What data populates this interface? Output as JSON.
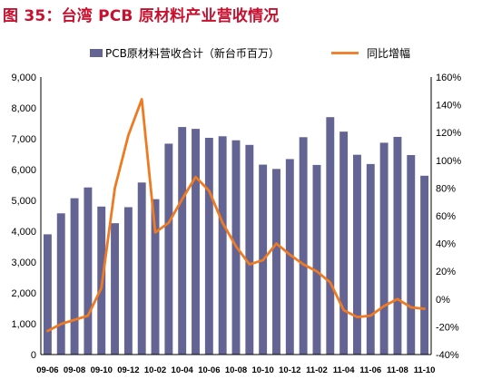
{
  "figure_title": "图 35：台湾 PCB 原材料产业营收情况",
  "colors": {
    "bar": "#636394",
    "line": "#ee7a22",
    "title": "#c8102e"
  },
  "chart_data": {
    "type": "bar+line",
    "categories": [
      "09-06",
      "09-07",
      "09-08",
      "09-09",
      "09-10",
      "09-11",
      "09-12",
      "10-01",
      "10-02",
      "10-03",
      "10-04",
      "10-05",
      "10-06",
      "10-07",
      "10-08",
      "10-09",
      "10-10",
      "10-11",
      "10-12",
      "11-01",
      "11-02",
      "11-03",
      "11-04",
      "11-05",
      "11-06",
      "11-07",
      "11-08",
      "11-09",
      "11-10"
    ],
    "x_tick_labels": [
      "09-06",
      "09-08",
      "09-10",
      "09-12",
      "10-02",
      "10-04",
      "10-06",
      "10-08",
      "10-10",
      "10-12",
      "11-02",
      "11-04",
      "11-06",
      "11-08",
      "11-10"
    ],
    "series": [
      {
        "name": "PCB原材料营收合计（新台币百万）",
        "type": "bar",
        "axis": "left",
        "values": [
          3900,
          4580,
          5070,
          5420,
          4800,
          4260,
          4780,
          5580,
          5040,
          6840,
          7380,
          7320,
          7030,
          7080,
          6950,
          6800,
          6160,
          6020,
          6340,
          7050,
          6150,
          7700,
          7230,
          6480,
          6180,
          6870,
          7060,
          6470,
          5800
        ]
      },
      {
        "name": "同比增幅",
        "type": "line",
        "axis": "right",
        "values": [
          -23,
          -18,
          -15,
          -12,
          8,
          80,
          118,
          144,
          48,
          55,
          72,
          88,
          78,
          55,
          38,
          25,
          28,
          40,
          32,
          25,
          20,
          12,
          -8,
          -13,
          -12,
          -5,
          0,
          -6,
          -7
        ]
      }
    ],
    "y_left": {
      "min": 0,
      "max": 9000,
      "step": 1000,
      "tick_labels": [
        "0",
        "1,000",
        "2,000",
        "3,000",
        "4,000",
        "5,000",
        "6,000",
        "7,000",
        "8,000",
        "9,000"
      ]
    },
    "y_right": {
      "min": -40,
      "max": 160,
      "step": 20,
      "tick_labels": [
        "-40%",
        "-20%",
        "0%",
        "20%",
        "40%",
        "60%",
        "80%",
        "100%",
        "120%",
        "140%",
        "160%"
      ]
    },
    "legend_position": "top",
    "grid": false
  }
}
